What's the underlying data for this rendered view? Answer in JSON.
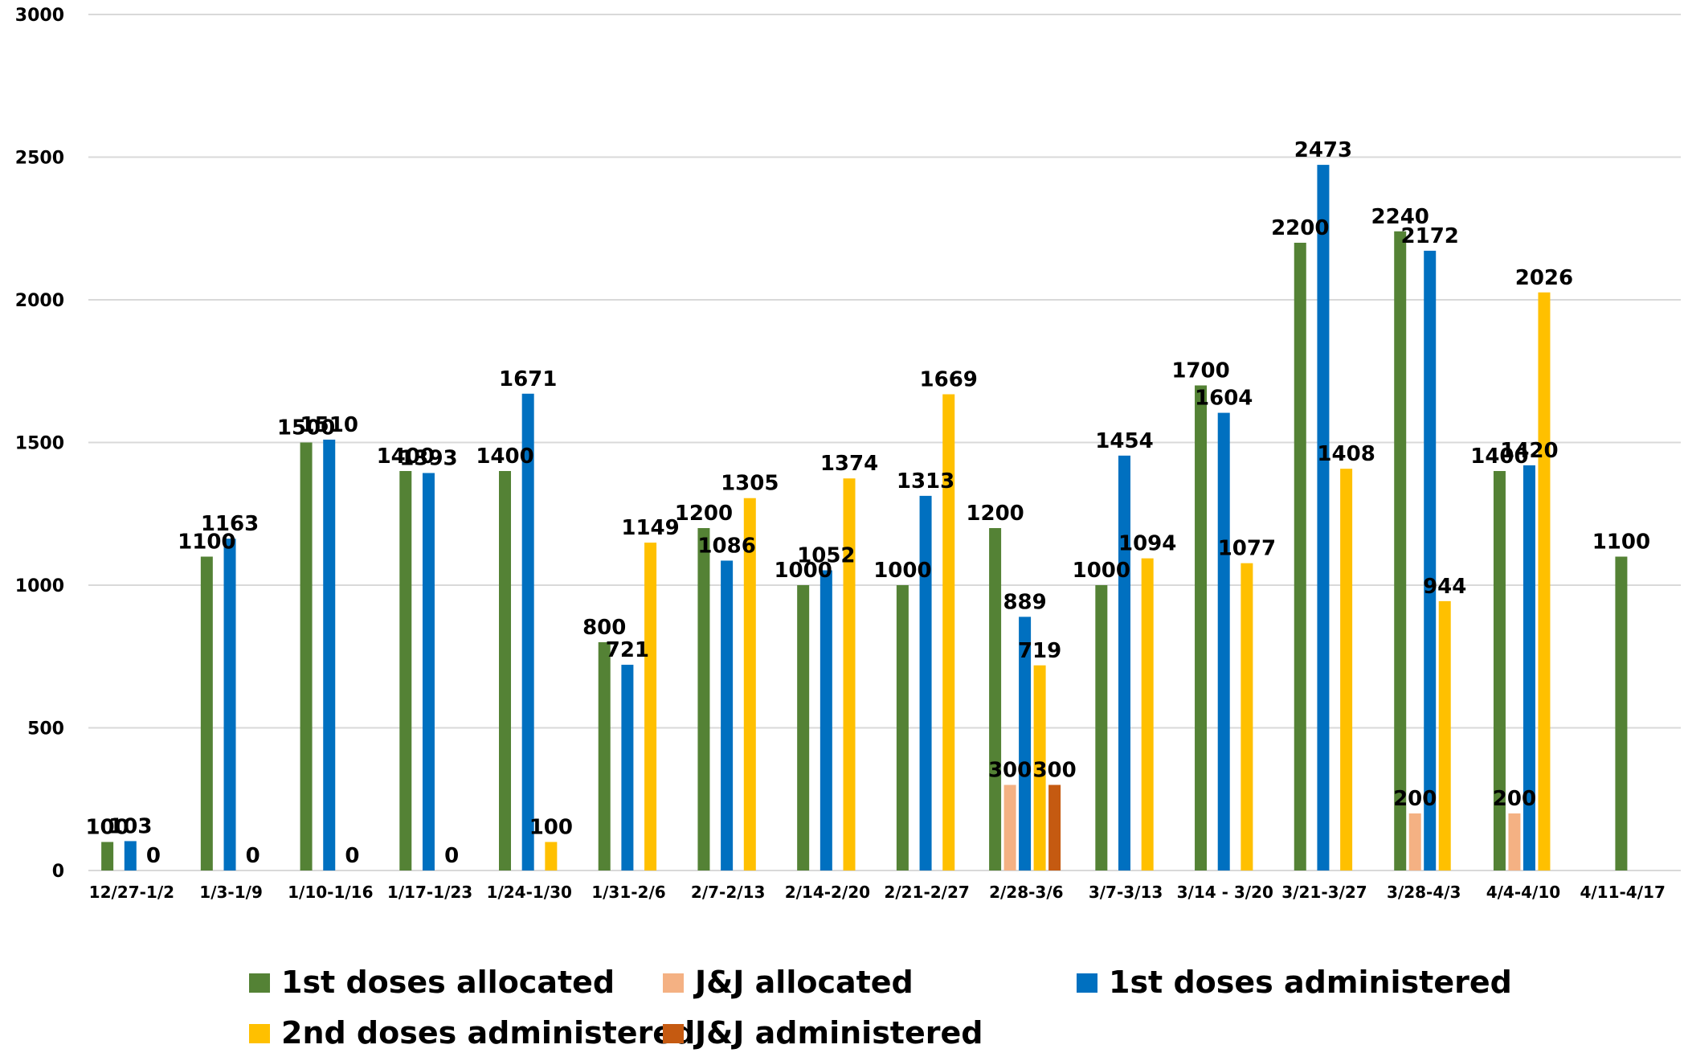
{
  "chart_data": {
    "type": "bar",
    "title": "",
    "xlabel": "",
    "ylabel": "",
    "ylim": [
      0,
      3000
    ],
    "yticks": [
      0,
      500,
      1000,
      1500,
      2000,
      2500,
      3000
    ],
    "grid": true,
    "legend_position": "bottom",
    "categories": [
      "12/27-1/2",
      "1/3-1/9",
      "1/10-1/16",
      "1/17-1/23",
      "1/24-1/30",
      "1/31-2/6",
      "2/7-2/13",
      "2/14-2/20",
      "2/21-2/27",
      "2/28-3/6",
      "3/7-3/13",
      "3/14 - 3/20",
      "3/21-3/27",
      "3/28-4/3",
      "4/4-4/10",
      "4/11-4/17"
    ],
    "series": [
      {
        "name": "1st doses allocated",
        "color": "#548235",
        "values": [
          100,
          1100,
          1500,
          1400,
          1400,
          800,
          1200,
          1000,
          1000,
          1200,
          1000,
          1700,
          2200,
          2240,
          1400,
          1100
        ]
      },
      {
        "name": "J&J allocated",
        "color": "#f4b183",
        "values": [
          null,
          null,
          null,
          null,
          null,
          null,
          null,
          null,
          null,
          300,
          null,
          null,
          null,
          200,
          200,
          null
        ]
      },
      {
        "name": "1st doses administered",
        "color": "#0070c0",
        "values": [
          103,
          1163,
          1510,
          1393,
          1671,
          721,
          1086,
          1052,
          1313,
          889,
          1454,
          1604,
          2473,
          2172,
          1420,
          null
        ]
      },
      {
        "name": "2nd doses administered",
        "color": "#ffc000",
        "values": [
          0,
          0,
          0,
          0,
          100,
          1149,
          1305,
          1374,
          1669,
          719,
          1094,
          1077,
          1408,
          944,
          2026,
          null
        ]
      },
      {
        "name": "J&J administered",
        "color": "#c55a11",
        "values": [
          null,
          null,
          null,
          null,
          null,
          null,
          null,
          null,
          null,
          300,
          null,
          null,
          null,
          null,
          null,
          null
        ]
      }
    ]
  }
}
